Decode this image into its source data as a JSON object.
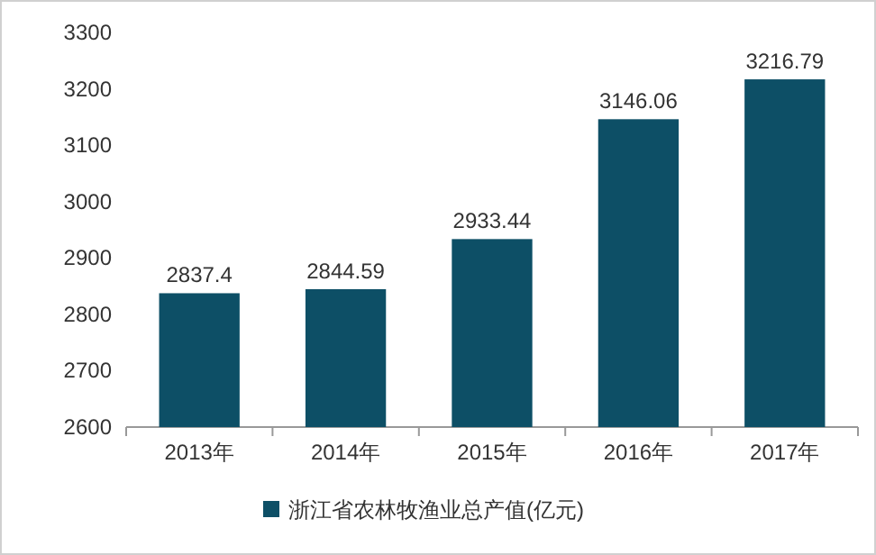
{
  "chart_data": {
    "type": "bar",
    "categories": [
      "2013年",
      "2014年",
      "2015年",
      "2016年",
      "2017年"
    ],
    "series": [
      {
        "name": "浙江省农林牧渔业总产值(亿元)",
        "color": "#0d4f66",
        "values": [
          2837.4,
          2844.59,
          2933.44,
          3146.06,
          3216.79
        ]
      }
    ],
    "ylim": [
      2600,
      3300
    ],
    "yticks": [
      2600,
      2700,
      2800,
      2900,
      3000,
      3100,
      3200,
      3300
    ],
    "data_labels": true,
    "legend": "bottom",
    "grid": false
  }
}
